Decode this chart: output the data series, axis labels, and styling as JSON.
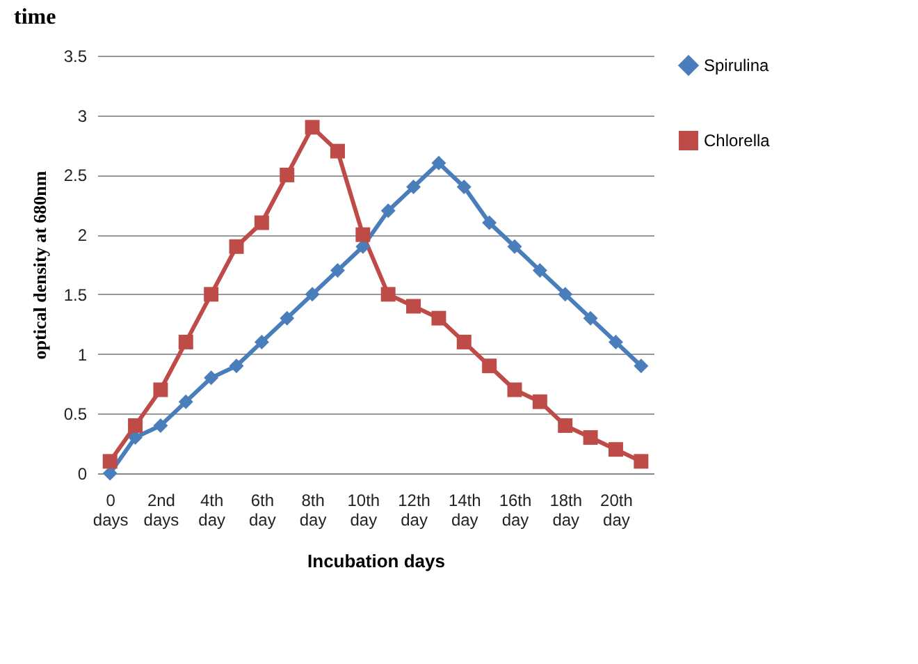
{
  "chart_data": {
    "type": "line",
    "title": "time",
    "xlabel": "Incubation days",
    "ylabel": "optical density at 680nm",
    "categories": [
      "0 days",
      null,
      "2nd days",
      null,
      "4th day",
      null,
      "6th day",
      null,
      "8th day",
      null,
      "10th day",
      null,
      "12th day",
      null,
      "14th day",
      null,
      "16th day",
      null,
      "18th day",
      null,
      "20th day",
      null
    ],
    "series": [
      {
        "name": "Spirulina",
        "color": "#4a7ebb",
        "marker": "diamond",
        "values": [
          0,
          0.3,
          0.4,
          0.6,
          0.8,
          0.9,
          1.1,
          1.3,
          1.5,
          1.7,
          1.9,
          2.2,
          2.4,
          2.6,
          2.4,
          2.1,
          1.9,
          1.7,
          1.5,
          1.3,
          1.1,
          0.9
        ]
      },
      {
        "name": "Chlorella",
        "color": "#be4b48",
        "marker": "square",
        "values": [
          0.1,
          0.4,
          0.7,
          1.1,
          1.5,
          1.9,
          2.1,
          2.5,
          2.9,
          2.7,
          2.0,
          1.5,
          1.4,
          1.3,
          1.1,
          0.9,
          0.7,
          0.6,
          0.4,
          0.3,
          0.2,
          0.1
        ]
      }
    ],
    "ylim": [
      0,
      3.5
    ],
    "yticks": [
      0,
      0.5,
      1,
      1.5,
      2,
      2.5,
      3,
      3.5
    ],
    "grid": "y",
    "legend": "right",
    "line_style": "solid"
  }
}
